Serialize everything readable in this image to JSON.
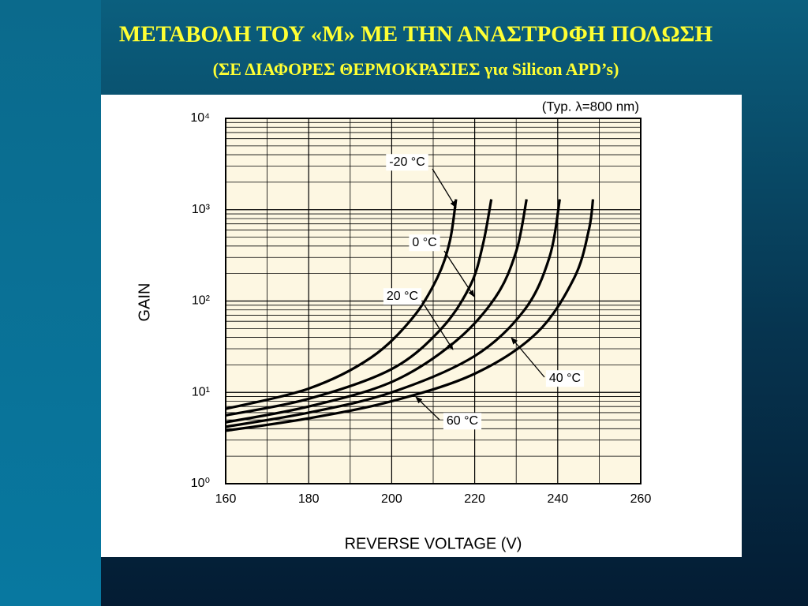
{
  "slide": {
    "title": "ΜΕΤΑΒΟΛΗ  ΤΟΥ «Μ» ΜΕ ΤΗΝ ΑΝΑΣΤΡΟΦΗ ΠΟΛΩΣΗ",
    "subtitle": "(ΣΕ ΔΙΑΦΟΡΕΣ ΘΕΡΜΟΚΡΑΣΙΕΣ  για Silicon APD’s)"
  },
  "chart_data": {
    "type": "line",
    "annotation": "(Typ. λ=800 nm)",
    "x_label": "REVERSE VOLTAGE (V)",
    "y_label": "GAIN",
    "xlim": [
      160,
      260
    ],
    "xticks": [
      160,
      180,
      200,
      220,
      240,
      260
    ],
    "ylim": [
      1,
      10000
    ],
    "log_y": true,
    "yticks": [
      {
        "value": 1,
        "label": "10⁰"
      },
      {
        "value": 10,
        "label": "10¹"
      },
      {
        "value": 100,
        "label": "10²"
      },
      {
        "value": 1000,
        "label": "10³"
      },
      {
        "value": 10000,
        "label": "10⁴"
      }
    ],
    "grid": true,
    "series": [
      {
        "name": "-20 °C",
        "color": "#000000",
        "x": [
          160,
          180,
          195,
          205,
          211,
          214,
          215.5
        ],
        "values": [
          6.6,
          11,
          24,
          65,
          180,
          450,
          1300
        ]
      },
      {
        "name": "0 °C",
        "color": "#000000",
        "x": [
          160,
          180,
          200,
          212,
          219,
          222,
          224
        ],
        "values": [
          5.6,
          8.5,
          18,
          50,
          150,
          420,
          1300
        ]
      },
      {
        "name": "20 °C",
        "color": "#000000",
        "x": [
          160,
          180,
          200,
          215,
          225,
          230,
          232.5
        ],
        "values": [
          4.7,
          7,
          13,
          35,
          110,
          350,
          1300
        ]
      },
      {
        "name": "40 °C",
        "color": "#000000",
        "x": [
          160,
          180,
          200,
          220,
          232,
          238,
          240.5
        ],
        "values": [
          4.2,
          6,
          10,
          25,
          80,
          300,
          1300
        ]
      },
      {
        "name": "60 °C",
        "color": "#000000",
        "x": [
          160,
          180,
          200,
          220,
          235,
          244,
          247.5,
          248.5
        ],
        "values": [
          3.8,
          5.2,
          8,
          16,
          45,
          180,
          600,
          1300
        ]
      }
    ]
  }
}
